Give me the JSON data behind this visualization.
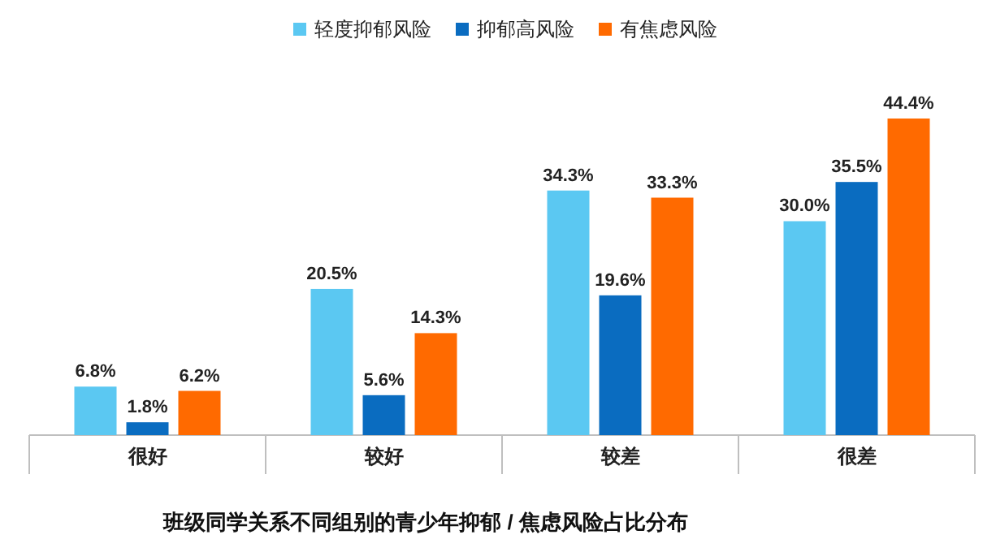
{
  "chart_data": {
    "type": "bar",
    "title": "班级同学关系不同组别的青少年抑郁 / 焦虑风险占比分布",
    "categories": [
      "很好",
      "较好",
      "较差",
      "很差"
    ],
    "series": [
      {
        "name": "轻度抑郁风险",
        "color": "#5bc8f2",
        "values": [
          6.8,
          20.5,
          34.3,
          30.0
        ],
        "value_labels": [
          "6.8%",
          "20.5%",
          "34.3%",
          "30.0%"
        ]
      },
      {
        "name": "抑郁高风险",
        "color": "#0a6cc0",
        "values": [
          1.8,
          5.6,
          19.6,
          35.5
        ],
        "value_labels": [
          "1.8%",
          "5.6%",
          "19.6%",
          "35.5%"
        ]
      },
      {
        "name": "有焦虑风险",
        "color": "#ff6a00",
        "values": [
          6.2,
          14.3,
          33.3,
          44.4
        ],
        "value_labels": [
          "6.2%",
          "14.3%",
          "33.3%",
          "44.4%"
        ]
      }
    ],
    "legend": "top"
  }
}
